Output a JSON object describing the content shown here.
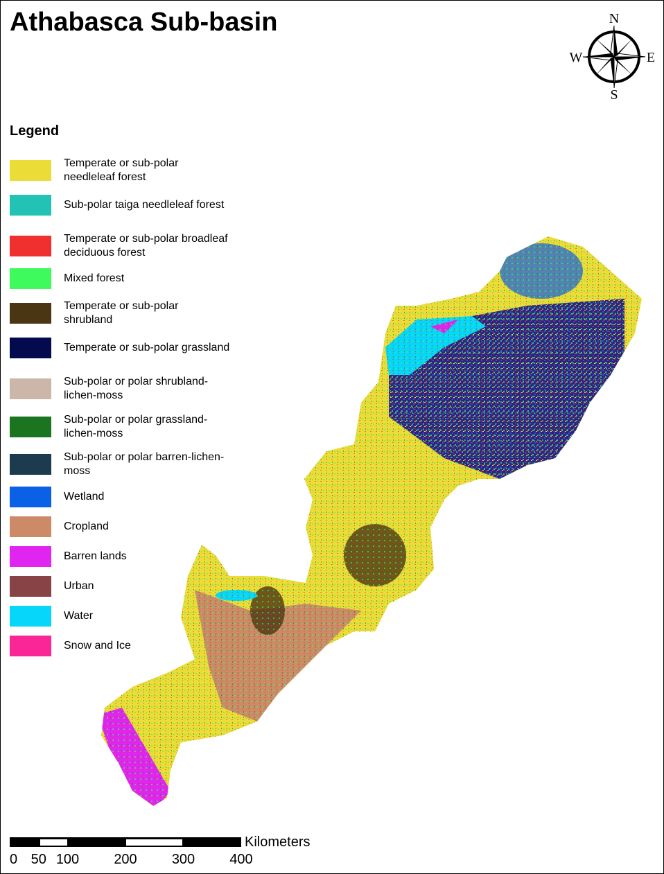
{
  "title": "Athabasca Sub-basin",
  "legend": {
    "title": "Legend",
    "items": [
      {
        "label": "Temperate or sub-polar needleleaf forest",
        "color": "#ECDC38"
      },
      {
        "label": "Sub-polar taiga needleleaf forest",
        "color": "#22C3B5"
      },
      {
        "label": "Temperate or sub-polar broadleaf deciduous forest",
        "color": "#F0302E"
      },
      {
        "label": "Mixed forest",
        "color": "#3EFA5C"
      },
      {
        "label": "Temperate or sub-polar shrubland",
        "color": "#4B3613"
      },
      {
        "label": "Temperate or sub-polar grassland",
        "color": "#030B4E"
      },
      {
        "label": "Sub-polar or polar shrubland-lichen-moss",
        "color": "#CBB6A9"
      },
      {
        "label": "Sub-polar or polar grassland-lichen-moss",
        "color": "#1B7420"
      },
      {
        "label": "Sub-polar or polar barren-lichen-moss",
        "color": "#1C3B4F"
      },
      {
        "label": "Wetland",
        "color": "#0B60E8"
      },
      {
        "label": "Cropland",
        "color": "#CC8A67"
      },
      {
        "label": "Barren lands",
        "color": "#E025F0"
      },
      {
        "label": "Urban",
        "color": "#874345"
      },
      {
        "label": "Water",
        "color": "#06D7FA"
      },
      {
        "label": "Snow and Ice",
        "color": "#FA2597"
      }
    ]
  },
  "compass": {
    "n": "N",
    "s": "S",
    "e": "E",
    "w": "W"
  },
  "scale_bar": {
    "unit": "Kilometers",
    "ticks": [
      "0",
      "50",
      "100",
      "200",
      "300",
      "400"
    ],
    "tick_values": [
      0,
      50,
      100,
      200,
      300,
      400
    ]
  }
}
